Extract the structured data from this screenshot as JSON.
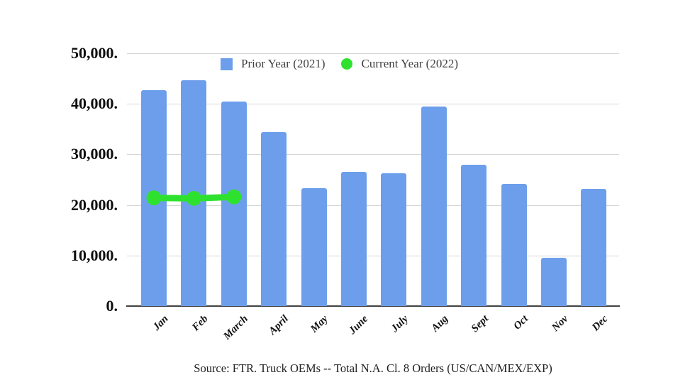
{
  "chart_data": {
    "type": "bar",
    "title": "",
    "categories": [
      "Jan",
      "Feb",
      "March",
      "April",
      "May",
      "June",
      "July",
      "Aug",
      "Sept",
      "Oct",
      "Nov",
      "Dec"
    ],
    "series": [
      {
        "name": "Prior Year (2021)",
        "type": "bar",
        "color": "#6d9eeb",
        "values": [
          42700,
          44600,
          40500,
          34400,
          23300,
          26600,
          26300,
          39500,
          27900,
          24100,
          9500,
          23200
        ]
      },
      {
        "name": "Current Year (2022)",
        "type": "line",
        "color": "#2fe12f",
        "values": [
          21400,
          21300,
          21600,
          null,
          null,
          null,
          null,
          null,
          null,
          null,
          null,
          null
        ]
      }
    ],
    "ylim": [
      0,
      50000
    ],
    "ytick_step": 10000,
    "ytick_labels": [
      "0.",
      "10,000.",
      "20,000.",
      "30,000.",
      "40,000.",
      "50,000."
    ],
    "grid": true,
    "legend_position": "top-center",
    "source_note": "Source: FTR. Truck OEMs -- Total N.A. Cl. 8 Orders (US/CAN/MEX/EXP)"
  },
  "legend": {
    "prior_label": "Prior Year (2021)",
    "current_label": "Current Year (2022)"
  },
  "footer": {
    "source": "Source: FTR. Truck OEMs -- Total N.A. Cl. 8 Orders (US/CAN/MEX/EXP)"
  },
  "colors": {
    "bar_blue": "#6d9eeb",
    "line_green": "#2fe12f",
    "gridline": "#d6d6d6",
    "axis_line": "#424242",
    "background": "#ffffff"
  }
}
